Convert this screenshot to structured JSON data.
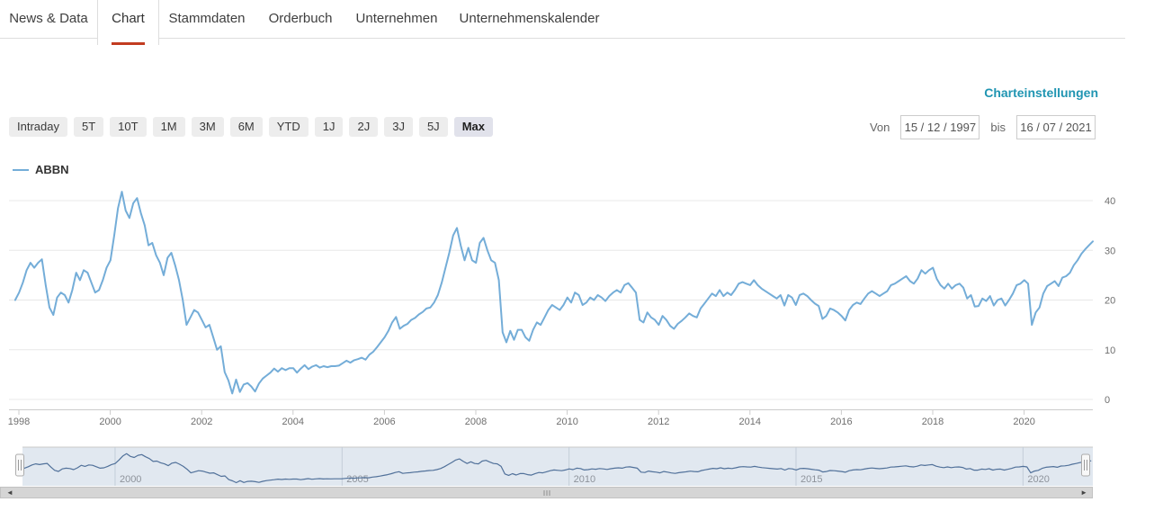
{
  "tabs": {
    "items": [
      {
        "label": "News & Data",
        "active": false
      },
      {
        "label": "Chart",
        "active": true
      },
      {
        "label": "Stammdaten",
        "active": false
      },
      {
        "label": "Orderbuch",
        "active": false
      },
      {
        "label": "Unternehmen",
        "active": false
      },
      {
        "label": "Unternehmenskalender",
        "active": false
      }
    ],
    "active_underline_color": "#c23c21"
  },
  "chart_settings_link": "Charteinstellungen",
  "controls": {
    "ranges": [
      "Intraday",
      "5T",
      "10T",
      "1M",
      "3M",
      "6M",
      "YTD",
      "1J",
      "2J",
      "3J",
      "5J",
      "Max"
    ],
    "selected_range": "Max",
    "from_label": "Von",
    "from_value": "15 / 12 / 1997",
    "to_label": "bis",
    "to_value": "16 / 07 / 2021"
  },
  "legend": {
    "series_name": "ABBN",
    "line_color": "#74add8"
  },
  "chart_data": {
    "type": "line",
    "title": "",
    "xlabel": "",
    "ylabel": "",
    "grid": true,
    "legend_position": "top-left",
    "y_axis_side": "right",
    "x_ticks": [
      1998,
      2000,
      2002,
      2004,
      2006,
      2008,
      2010,
      2012,
      2014,
      2016,
      2018,
      2020
    ],
    "y_ticks": [
      0,
      10,
      20,
      30,
      40
    ],
    "ylim": [
      0,
      44
    ],
    "x_range": [
      1997.92,
      2021.54
    ],
    "series": [
      {
        "name": "ABBN",
        "color": "#74add8",
        "start_year": 1997.92,
        "interval_years": 0.083333,
        "values": [
          20.0,
          21.5,
          23.5,
          26.0,
          27.5,
          26.5,
          27.5,
          28.2,
          23.0,
          18.5,
          17.0,
          20.5,
          21.5,
          21.0,
          19.5,
          22.0,
          25.5,
          24.0,
          26.0,
          25.5,
          23.5,
          21.5,
          22.0,
          24.0,
          26.5,
          28.0,
          33.0,
          38.5,
          41.8,
          38.0,
          36.5,
          39.5,
          40.5,
          37.5,
          35.0,
          31.0,
          31.5,
          29.0,
          27.5,
          25.0,
          28.5,
          29.5,
          27.0,
          24.0,
          20.0,
          15.0,
          16.5,
          18.0,
          17.5,
          16.0,
          14.5,
          15.0,
          12.5,
          10.0,
          10.7,
          5.5,
          3.8,
          1.2,
          4.0,
          1.5,
          3.0,
          3.3,
          2.6,
          1.6,
          3.2,
          4.2,
          4.8,
          5.4,
          6.2,
          5.6,
          6.3,
          5.9,
          6.3,
          6.3,
          5.4,
          6.2,
          6.9,
          6.1,
          6.6,
          6.9,
          6.4,
          6.7,
          6.5,
          6.7,
          6.7,
          6.8,
          7.3,
          7.8,
          7.4,
          7.9,
          8.1,
          8.4,
          8.0,
          9.0,
          9.6,
          10.5,
          11.5,
          12.5,
          13.8,
          15.5,
          16.6,
          14.2,
          14.8,
          15.2,
          16.0,
          16.4,
          17.1,
          17.6,
          18.3,
          18.5,
          19.5,
          21.0,
          23.5,
          26.5,
          29.5,
          33.0,
          34.5,
          31.0,
          28.0,
          30.5,
          28.0,
          27.5,
          31.5,
          32.5,
          30.0,
          28.0,
          27.5,
          24.0,
          13.5,
          11.5,
          13.8,
          12.0,
          14.0,
          14.0,
          12.5,
          11.8,
          14.0,
          15.5,
          15.0,
          16.5,
          18.0,
          19.0,
          18.5,
          18.0,
          19.0,
          20.5,
          19.5,
          21.5,
          21.0,
          19.0,
          19.5,
          20.5,
          20.0,
          21.0,
          20.5,
          19.8,
          20.8,
          21.5,
          22.0,
          21.5,
          23.0,
          23.4,
          22.5,
          21.5,
          16.0,
          15.5,
          17.5,
          16.5,
          16.0,
          15.0,
          16.8,
          16.0,
          14.8,
          14.2,
          15.2,
          15.8,
          16.5,
          17.3,
          16.8,
          16.5,
          18.3,
          19.3,
          20.3,
          21.3,
          20.8,
          22.0,
          20.8,
          21.5,
          21.0,
          22.0,
          23.3,
          23.6,
          23.3,
          23.0,
          24.0,
          23.0,
          22.3,
          21.8,
          21.3,
          20.8,
          20.3,
          21.0,
          18.9,
          21.0,
          20.5,
          19.0,
          21.0,
          21.3,
          20.8,
          20.0,
          19.3,
          18.8,
          16.2,
          16.8,
          18.3,
          18.0,
          17.5,
          16.8,
          15.9,
          18.0,
          19.0,
          19.5,
          19.2,
          20.3,
          21.3,
          21.8,
          21.3,
          20.8,
          21.3,
          21.8,
          23.0,
          23.3,
          23.8,
          24.3,
          24.8,
          23.8,
          23.3,
          24.3,
          26.0,
          25.3,
          26.0,
          26.5,
          24.3,
          23.0,
          22.3,
          23.3,
          22.3,
          23.0,
          23.3,
          22.5,
          20.3,
          21.0,
          18.7,
          18.8,
          20.3,
          19.8,
          20.8,
          18.9,
          20.0,
          20.3,
          18.9,
          20.0,
          21.3,
          23.0,
          23.3,
          24.0,
          23.3,
          15.0,
          17.5,
          18.5,
          21.3,
          22.8,
          23.3,
          23.8,
          22.8,
          24.5,
          24.8,
          25.5,
          27.0,
          28.0,
          29.3,
          30.2,
          31.0,
          31.8
        ]
      }
    ]
  },
  "navigator": {
    "gridline_years": [
      2000,
      2005,
      2010,
      2015,
      2020
    ],
    "background": "#e1e8f0",
    "line_color": "#51719a"
  },
  "scrollbar": {
    "left_arrow": "◄",
    "right_arrow": "►"
  }
}
